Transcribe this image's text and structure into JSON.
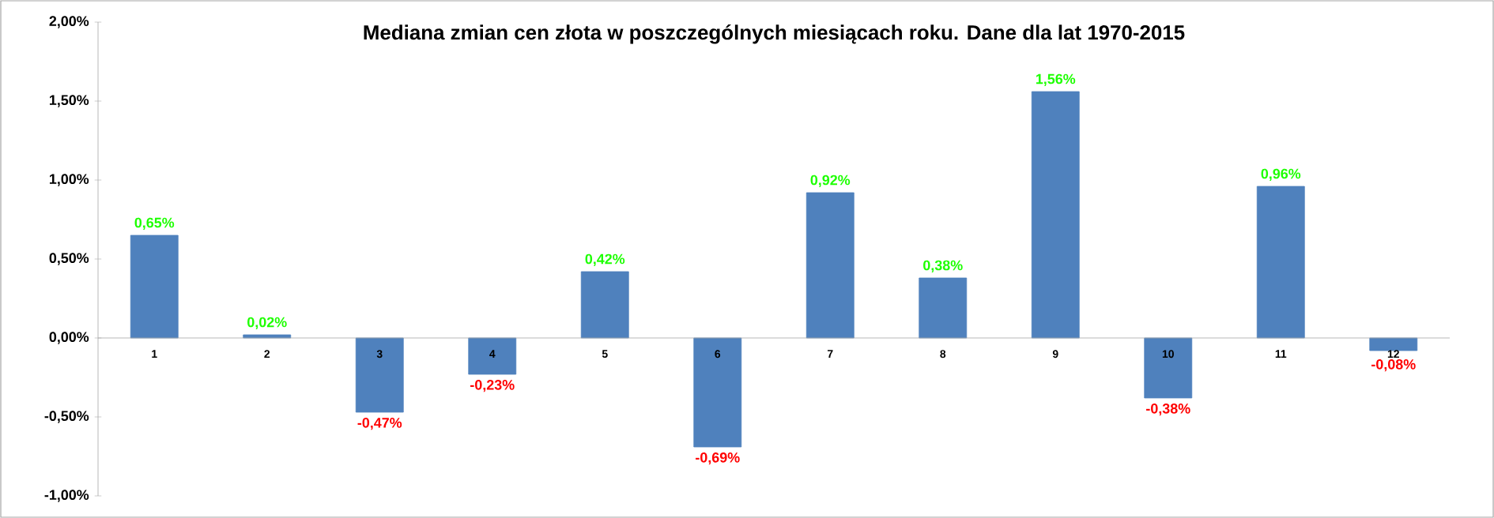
{
  "chart_data": {
    "type": "bar",
    "title": "Mediana zmian cen złota w poszczególnych miesiącach roku. Dane dla lat 1970-2015",
    "categories": [
      "1",
      "2",
      "3",
      "4",
      "5",
      "6",
      "7",
      "8",
      "9",
      "10",
      "11",
      "12"
    ],
    "values": [
      0.65,
      0.02,
      -0.47,
      -0.23,
      0.42,
      -0.69,
      0.92,
      0.38,
      1.56,
      -0.38,
      0.96,
      -0.08
    ],
    "value_labels": [
      "0,65%",
      "0,02%",
      "-0,47%",
      "-0,23%",
      "0,42%",
      "-0,69%",
      "0,92%",
      "0,38%",
      "1,56%",
      "-0,38%",
      "0,96%",
      "-0,08%"
    ],
    "color": "#4f81bd",
    "ylim": [
      -1,
      2
    ],
    "yticks": [
      {
        "value": -1,
        "label": "-1,00%"
      },
      {
        "value": -0.5,
        "label": "-0,50%"
      },
      {
        "value": 0,
        "label": "0,00%"
      },
      {
        "value": 0.5,
        "label": "0,50%"
      },
      {
        "value": 1,
        "label": "1,00%"
      },
      {
        "value": 1.5,
        "label": "1,50%"
      },
      {
        "value": 2,
        "label": "2,00%"
      }
    ],
    "grid": false
  }
}
